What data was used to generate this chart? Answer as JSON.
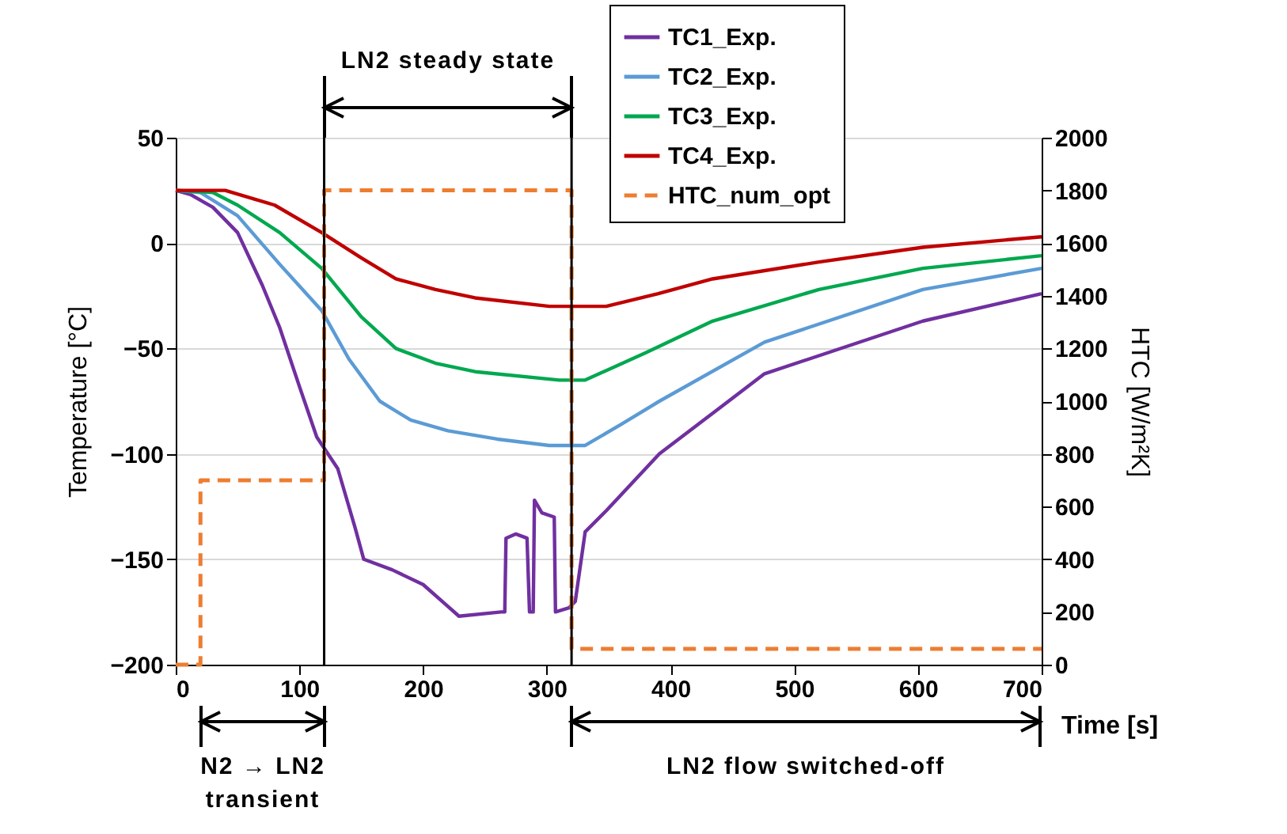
{
  "chart_data": {
    "type": "line",
    "xlabel": "Time [s]",
    "ylabel": "Temperature [°C]",
    "y2label": "HTC [W/m²K]",
    "xlim": [
      0,
      700
    ],
    "xticks": [
      0,
      100,
      200,
      300,
      400,
      500,
      600,
      700
    ],
    "ylim": [
      -200,
      50
    ],
    "yticks": [
      -200,
      -150,
      -100,
      -50,
      0,
      50
    ],
    "y2lim": [
      0,
      2000
    ],
    "y2ticks": [
      0,
      200,
      400,
      600,
      800,
      1000,
      1200,
      1400,
      1600,
      1800,
      2000
    ],
    "grid": "y",
    "legend": "top right",
    "series": [
      {
        "name": "TC1_Exp.",
        "color": "#7030a0",
        "x": [
          0,
          12,
          30,
          50,
          70,
          84,
          100,
          114,
          131,
          145,
          152,
          175,
          200,
          229,
          263,
          266,
          267,
          275,
          284,
          286,
          289,
          290,
          296,
          306,
          307,
          318,
          323,
          331,
          348,
          391,
          476,
          604,
          700
        ],
        "values": [
          25,
          23,
          17,
          5,
          -20,
          -40,
          -68,
          -92,
          -107,
          -135,
          -150,
          -155,
          -162,
          -177,
          -175,
          -175,
          -140,
          -138,
          -140,
          -175,
          -175,
          -122,
          -128,
          -130,
          -175,
          -173,
          -170,
          -137,
          -127,
          -100,
          -62,
          -37,
          -24
        ]
      },
      {
        "name": "TC2_Exp.",
        "color": "#5b9bd5",
        "x": [
          0,
          20,
          50,
          84,
          118,
          140,
          165,
          190,
          220,
          260,
          302,
          331,
          360,
          391,
          476,
          604,
          700
        ],
        "values": [
          25,
          24,
          13,
          -10,
          -32,
          -55,
          -75,
          -84,
          -89,
          -93,
          -96,
          -96,
          -86,
          -75,
          -47,
          -22,
          -12
        ]
      },
      {
        "name": "TC3_Exp.",
        "color": "#00a84f",
        "x": [
          0,
          30,
          50,
          84,
          118,
          150,
          178,
          210,
          242,
          310,
          331,
          380,
          434,
          520,
          604,
          700
        ],
        "values": [
          25,
          24,
          18,
          5,
          -12,
          -35,
          -50,
          -57,
          -61,
          -65,
          -65,
          -52,
          -37,
          -22,
          -12,
          -6
        ]
      },
      {
        "name": "TC4_Exp.",
        "color": "#c00000",
        "x": [
          0,
          40,
          80,
          118,
          150,
          178,
          210,
          242,
          302,
          330,
          348,
          390,
          434,
          520,
          604,
          700
        ],
        "values": [
          25,
          25,
          18,
          5,
          -7,
          -17,
          -22,
          -26,
          -30,
          -30,
          -30,
          -24,
          -17,
          -9,
          -2,
          3
        ]
      },
      {
        "name": "HTC_num_opt",
        "color": "#ed7d31",
        "axis": "y2",
        "line_style": "dashed",
        "x": [
          0,
          20,
          20,
          120,
          120,
          320,
          320,
          700
        ],
        "values": [
          0,
          0,
          700,
          700,
          1800,
          1800,
          60,
          60
        ]
      }
    ],
    "ref_lines": [
      {
        "axis": "x",
        "value": 120,
        "color": "#000000"
      },
      {
        "axis": "x",
        "value": 320,
        "color": "#000000"
      }
    ],
    "annotations": [
      "LN2 steady state",
      "N2 → LN2 transient",
      "LN2 flow switched-off"
    ]
  }
}
